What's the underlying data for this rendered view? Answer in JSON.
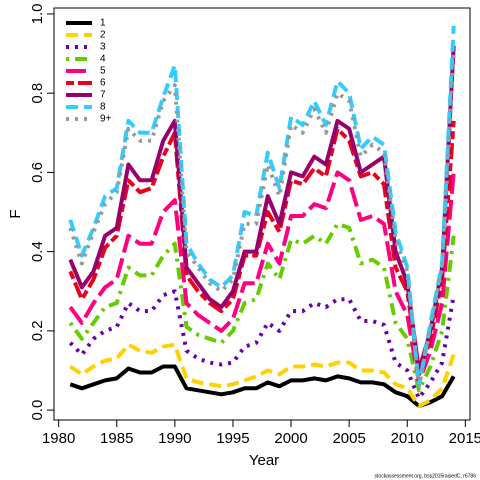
{
  "chart_data": {
    "type": "line",
    "x_label": "Year",
    "y_label": "F",
    "footer": "stockassessment.org, bss2015raisedC, r6786",
    "x": [
      1981,
      1982,
      1983,
      1984,
      1985,
      1986,
      1987,
      1988,
      1989,
      1990,
      1991,
      1992,
      1993,
      1994,
      1995,
      1996,
      1997,
      1998,
      1999,
      2000,
      2001,
      2002,
      2003,
      2004,
      2005,
      2006,
      2007,
      2008,
      2009,
      2010,
      2011,
      2012,
      2013,
      2014
    ],
    "xlim": [
      1979.6,
      2015.4
    ],
    "xticks": [
      1980,
      1985,
      1990,
      1995,
      2000,
      2005,
      2010,
      2015
    ],
    "ylim": [
      -0.025,
      1.015
    ],
    "yticks": [
      {
        "value": 0,
        "label": "0.0"
      },
      0.2,
      0.4,
      0.6,
      0.8,
      {
        "value": 1,
        "label": "1.0"
      }
    ],
    "legend": "top-left",
    "series": [
      {
        "name": "1",
        "color": "#000000",
        "style": "solid",
        "values": [
          0.065,
          0.055,
          0.065,
          0.075,
          0.08,
          0.105,
          0.095,
          0.095,
          0.11,
          0.11,
          0.055,
          0.05,
          0.045,
          0.04,
          0.045,
          0.055,
          0.055,
          0.07,
          0.06,
          0.075,
          0.075,
          0.08,
          0.075,
          0.085,
          0.08,
          0.07,
          0.07,
          0.065,
          0.045,
          0.035,
          0.01,
          0.02,
          0.035,
          0.085
        ]
      },
      {
        "name": "2",
        "color": "#FFD100",
        "style": "dashed",
        "values": [
          0.11,
          0.09,
          0.11,
          0.125,
          0.13,
          0.165,
          0.15,
          0.145,
          0.16,
          0.165,
          0.08,
          0.07,
          0.065,
          0.06,
          0.065,
          0.075,
          0.085,
          0.1,
          0.09,
          0.11,
          0.11,
          0.115,
          0.11,
          0.12,
          0.12,
          0.1,
          0.1,
          0.095,
          0.065,
          0.055,
          0.01,
          0.025,
          0.055,
          0.14
        ]
      },
      {
        "name": "3",
        "color": "#6A00A8",
        "style": "dotted",
        "values": [
          0.17,
          0.14,
          0.18,
          0.2,
          0.21,
          0.27,
          0.25,
          0.25,
          0.29,
          0.3,
          0.15,
          0.13,
          0.12,
          0.115,
          0.12,
          0.16,
          0.17,
          0.22,
          0.2,
          0.25,
          0.25,
          0.27,
          0.26,
          0.28,
          0.28,
          0.225,
          0.225,
          0.215,
          0.12,
          0.1,
          0.03,
          0.07,
          0.12,
          0.29
        ]
      },
      {
        "name": "4",
        "color": "#66CC00",
        "style": "dotdash",
        "values": [
          0.22,
          0.18,
          0.22,
          0.26,
          0.27,
          0.36,
          0.34,
          0.34,
          0.39,
          0.42,
          0.21,
          0.19,
          0.18,
          0.17,
          0.2,
          0.27,
          0.28,
          0.37,
          0.33,
          0.43,
          0.42,
          0.44,
          0.42,
          0.47,
          0.46,
          0.37,
          0.38,
          0.36,
          0.22,
          0.18,
          0.05,
          0.11,
          0.2,
          0.44
        ]
      },
      {
        "name": "5",
        "color": "#FF0080",
        "style": "longdash",
        "values": [
          0.26,
          0.22,
          0.27,
          0.31,
          0.33,
          0.44,
          0.42,
          0.42,
          0.5,
          0.53,
          0.27,
          0.24,
          0.22,
          0.2,
          0.23,
          0.32,
          0.32,
          0.42,
          0.37,
          0.49,
          0.49,
          0.52,
          0.51,
          0.6,
          0.58,
          0.48,
          0.49,
          0.47,
          0.3,
          0.24,
          0.07,
          0.15,
          0.27,
          0.6
        ]
      },
      {
        "name": "6",
        "color": "#E8001C",
        "style": "twodash",
        "values": [
          0.35,
          0.28,
          0.33,
          0.41,
          0.44,
          0.58,
          0.55,
          0.56,
          0.64,
          0.7,
          0.34,
          0.3,
          0.27,
          0.25,
          0.28,
          0.39,
          0.39,
          0.5,
          0.45,
          0.58,
          0.57,
          0.61,
          0.59,
          0.71,
          0.68,
          0.59,
          0.6,
          0.57,
          0.36,
          0.3,
          0.09,
          0.18,
          0.33,
          0.73
        ]
      },
      {
        "name": "7",
        "color": "#99006B",
        "style": "solid",
        "values": [
          0.38,
          0.31,
          0.35,
          0.44,
          0.46,
          0.62,
          0.58,
          0.58,
          0.68,
          0.73,
          0.36,
          0.32,
          0.28,
          0.26,
          0.3,
          0.4,
          0.4,
          0.54,
          0.47,
          0.6,
          0.59,
          0.64,
          0.62,
          0.73,
          0.71,
          0.6,
          0.62,
          0.64,
          0.4,
          0.32,
          0.1,
          0.2,
          0.36,
          0.92
        ]
      },
      {
        "name": "8",
        "color": "#33CCFF",
        "style": "dashed",
        "values": [
          0.48,
          0.39,
          0.46,
          0.54,
          0.56,
          0.73,
          0.7,
          0.7,
          0.79,
          0.87,
          0.42,
          0.37,
          0.33,
          0.31,
          0.34,
          0.5,
          0.49,
          0.65,
          0.56,
          0.74,
          0.72,
          0.78,
          0.72,
          0.83,
          0.8,
          0.66,
          0.69,
          0.67,
          0.45,
          0.36,
          0.06,
          0.22,
          0.37,
          0.97
        ]
      },
      {
        "name": "9+",
        "color": "#999999",
        "style": "dotted",
        "values": [
          0.46,
          0.37,
          0.45,
          0.52,
          0.55,
          0.71,
          0.68,
          0.68,
          0.78,
          0.82,
          0.4,
          0.36,
          0.32,
          0.3,
          0.33,
          0.47,
          0.47,
          0.62,
          0.54,
          0.72,
          0.7,
          0.76,
          0.7,
          0.8,
          0.78,
          0.64,
          0.67,
          0.65,
          0.43,
          0.35,
          0.06,
          0.21,
          0.36,
          0.9
        ]
      }
    ]
  }
}
